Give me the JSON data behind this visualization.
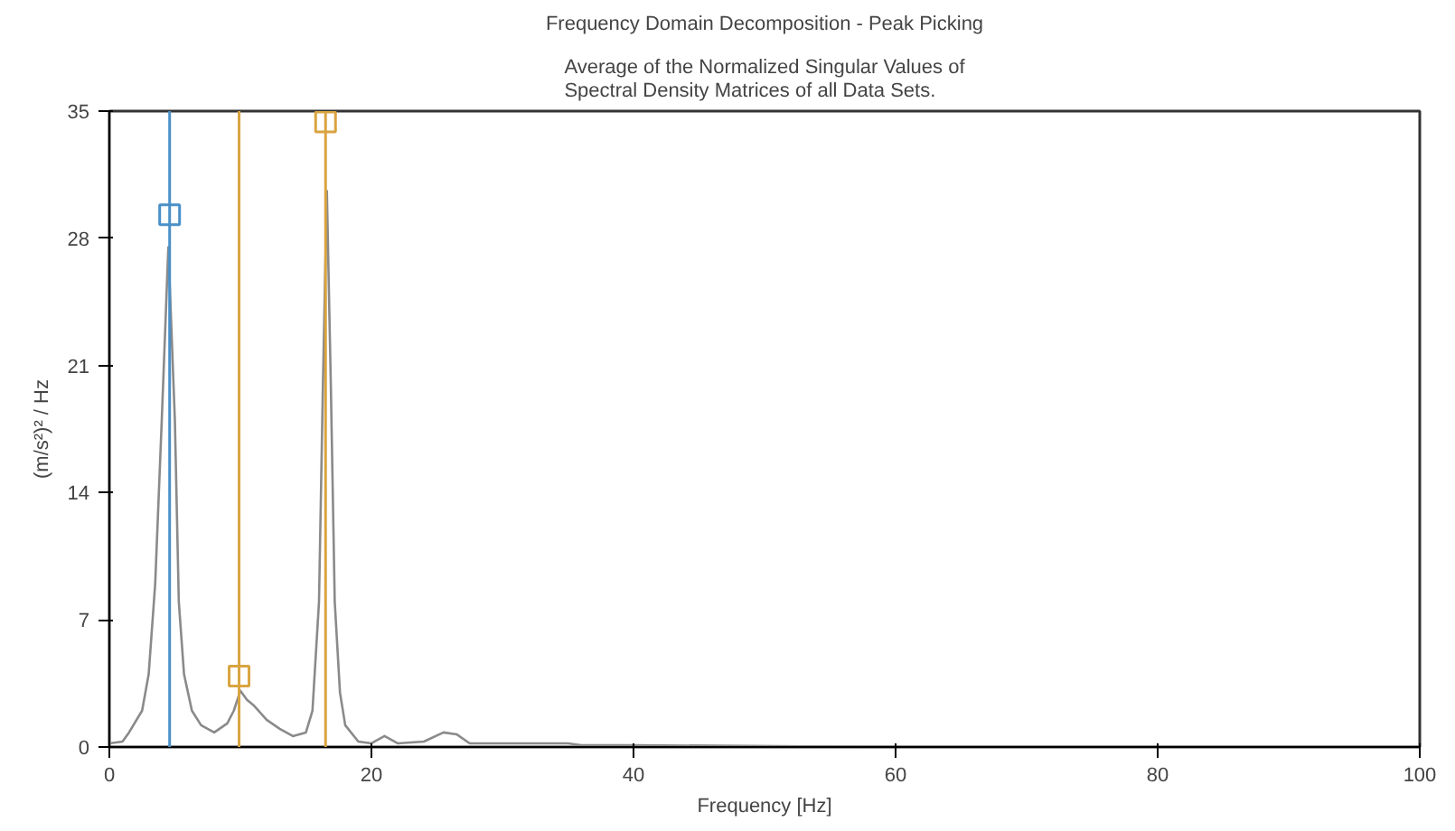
{
  "chart_data": {
    "type": "line",
    "title": "Frequency Domain Decomposition - Peak Picking",
    "subtitle": "Average of the Normalized Singular Values of\nSpectral Density Matrices of all Data Sets.",
    "xlabel": "Frequency [Hz]",
    "ylabel": "(m/s²)² / Hz",
    "xlim": [
      0,
      100
    ],
    "ylim": [
      0,
      35
    ],
    "xticks": [
      0,
      20,
      40,
      60,
      80,
      100
    ],
    "yticks": [
      0,
      7,
      14,
      21,
      28,
      35
    ],
    "grid": false,
    "series": [
      {
        "color": "#8a8a8a",
        "x": [
          0,
          1,
          1.5,
          2.5,
          3,
          3.5,
          4,
          4.5,
          5,
          5.3,
          5.7,
          6.3,
          7,
          8,
          9,
          9.5,
          10,
          10.5,
          11,
          12,
          13,
          14,
          15,
          15.5,
          16,
          16.3,
          16.6,
          16.9,
          17.2,
          17.6,
          18,
          19,
          20,
          21,
          22,
          24,
          25.5,
          26.5,
          27.5,
          30,
          35,
          36,
          40,
          60,
          100
        ],
        "values": [
          0.2,
          0.3,
          0.8,
          2,
          4,
          9,
          18,
          27.5,
          18,
          8,
          4,
          2,
          1.2,
          0.8,
          1.3,
          2,
          3.1,
          2.6,
          2.3,
          1.5,
          1,
          0.6,
          0.8,
          2,
          8,
          20,
          30.6,
          20,
          8,
          3,
          1.2,
          0.3,
          0.2,
          0.6,
          0.2,
          0.3,
          0.8,
          0.7,
          0.2,
          0.2,
          0.2,
          0.1,
          0.1,
          0,
          0
        ]
      },
      {
        "type": "scatter",
        "marker": "square",
        "x": [
          4.6,
          9.9,
          16.5
        ],
        "values": [
          29.3,
          3.9,
          34.4
        ],
        "colors": [
          "#4a90c8",
          "#d9a441",
          "#d9a441"
        ]
      }
    ],
    "ref_lines": [
      {
        "axis": "x",
        "value": 4.6,
        "color": "#4a90c8"
      },
      {
        "axis": "x",
        "value": 9.9,
        "color": "#d9a441"
      },
      {
        "axis": "x",
        "value": 16.5,
        "color": "#d9a441"
      }
    ]
  }
}
